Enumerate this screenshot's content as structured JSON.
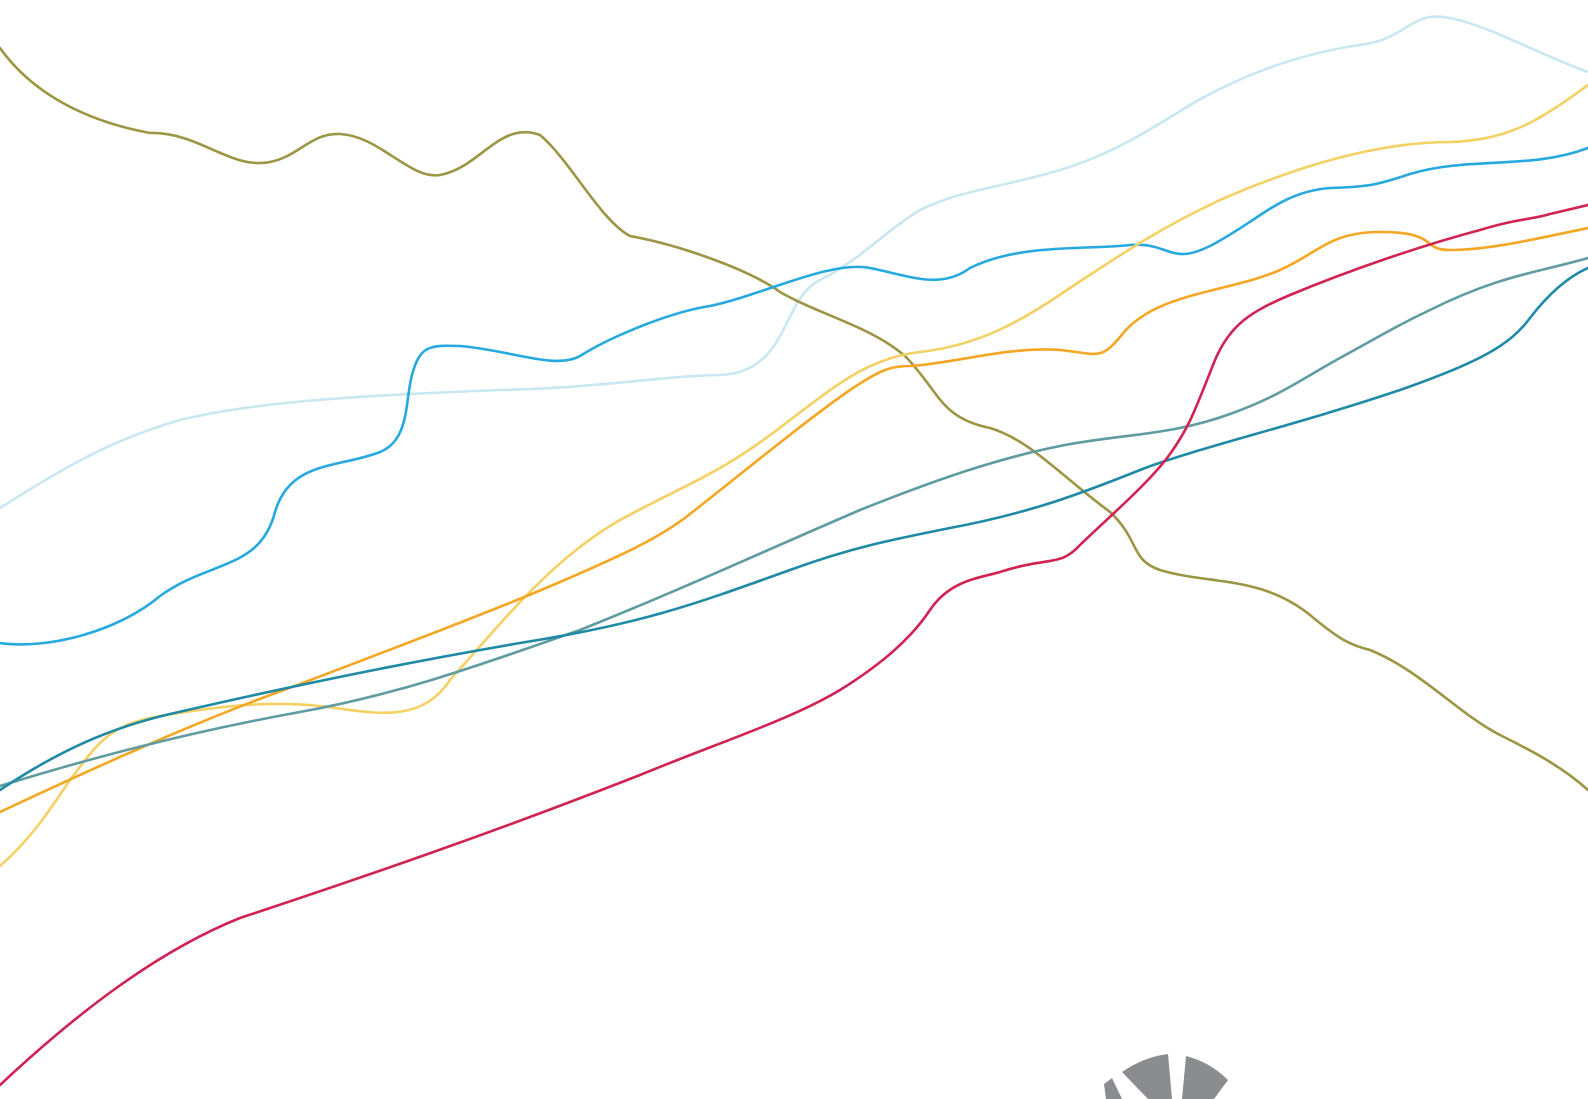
{
  "lines": [
    {
      "id": "line-light-blue",
      "color": "#c8e7f1"
    },
    {
      "id": "line-olive",
      "color": "#9c9544"
    },
    {
      "id": "line-sky-blue",
      "color": "#26a9df"
    },
    {
      "id": "line-pale-yellow",
      "color": "#f5d063"
    },
    {
      "id": "line-orange",
      "color": "#f5a623"
    },
    {
      "id": "line-teal-grey",
      "color": "#5f9ca2"
    },
    {
      "id": "line-teal",
      "color": "#1f8aa6"
    },
    {
      "id": "line-crimson",
      "color": "#d12351"
    }
  ],
  "emblem": {
    "icon": "partial-circular-emblem-icon",
    "color": "#8a8c8f"
  }
}
